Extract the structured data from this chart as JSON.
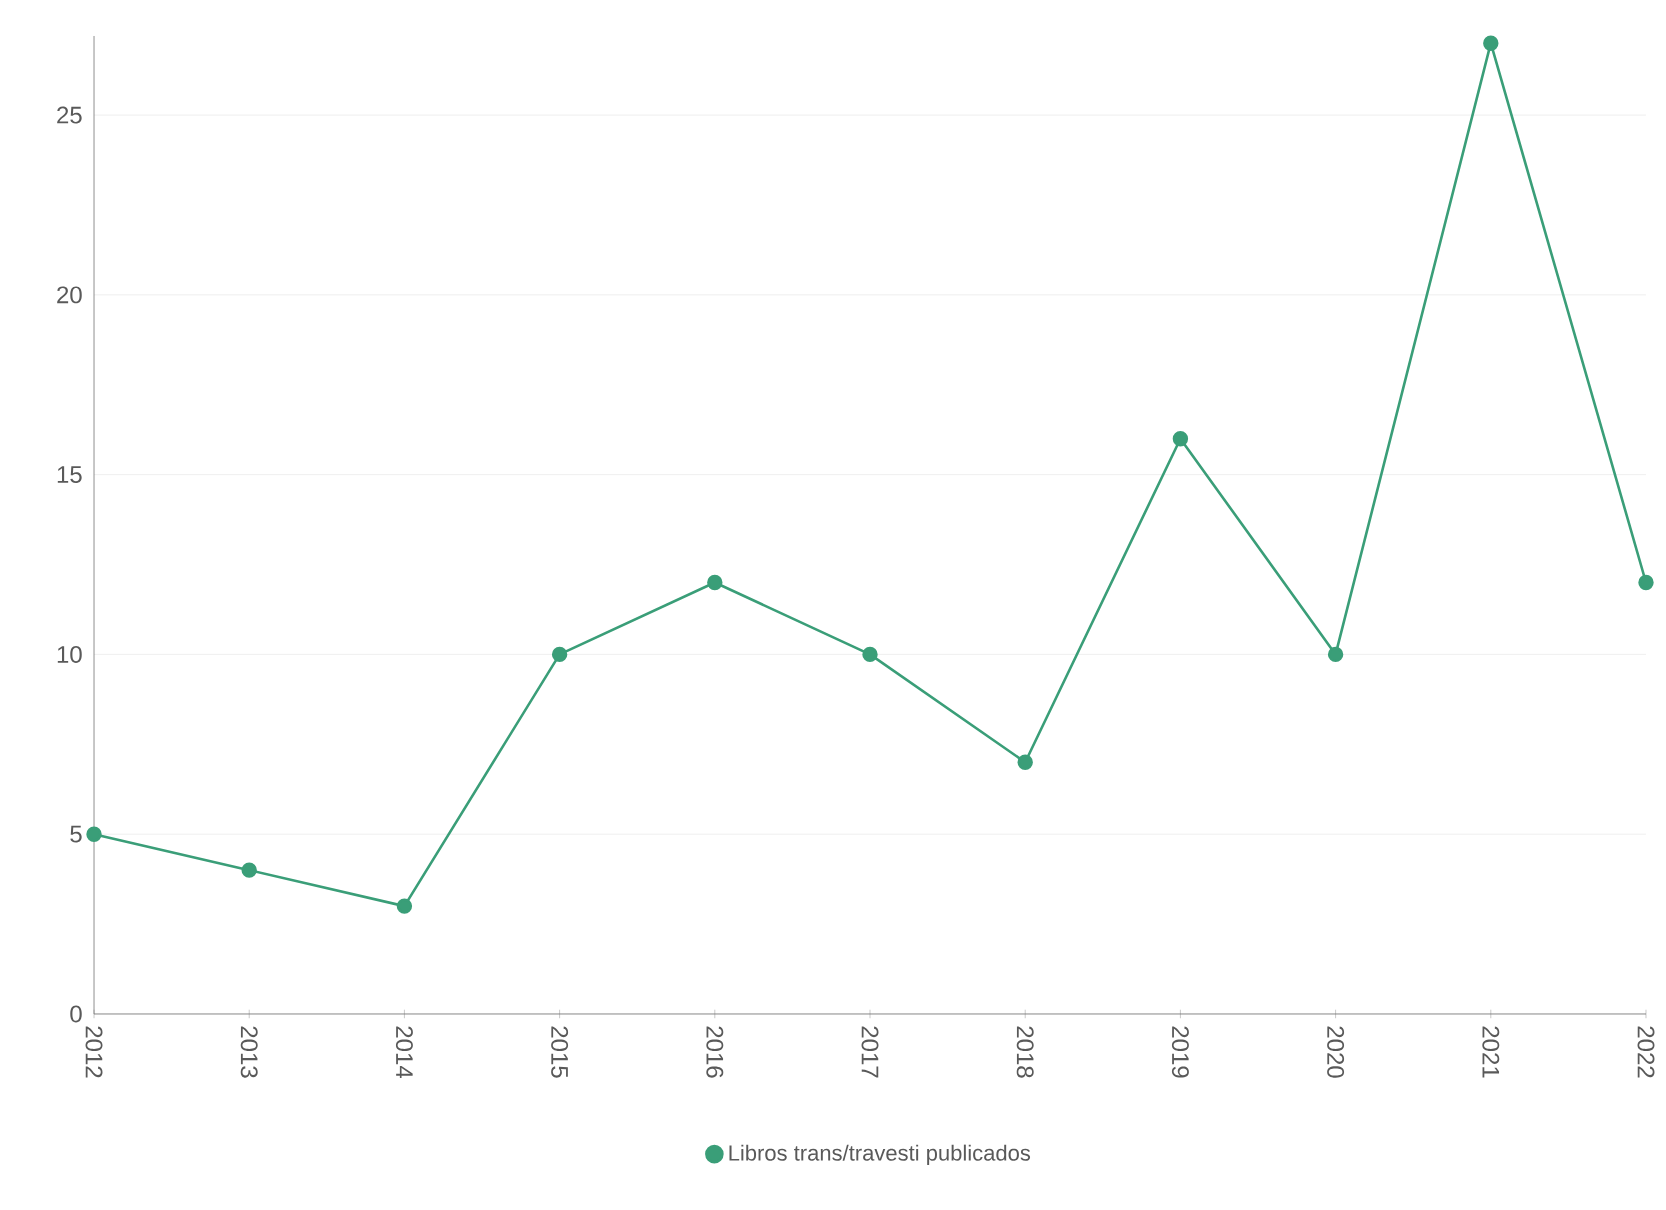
{
  "chart_data": {
    "type": "line",
    "categories": [
      "2012",
      "2013",
      "2014",
      "2015",
      "2016",
      "2017",
      "2018",
      "2019",
      "2020",
      "2021",
      "2022"
    ],
    "series": [
      {
        "name": "Libros trans/travesti publicados",
        "color": "#3a9e78",
        "values": [
          5,
          4,
          3,
          10,
          12,
          10,
          7,
          16,
          10,
          27,
          12
        ]
      }
    ],
    "ylim": [
      0,
      27.2
    ],
    "yticks": [
      0,
      5,
      10,
      15,
      20,
      25
    ],
    "grid": "y",
    "legend": "bottom",
    "marker": "circle",
    "line_style": "solid"
  }
}
